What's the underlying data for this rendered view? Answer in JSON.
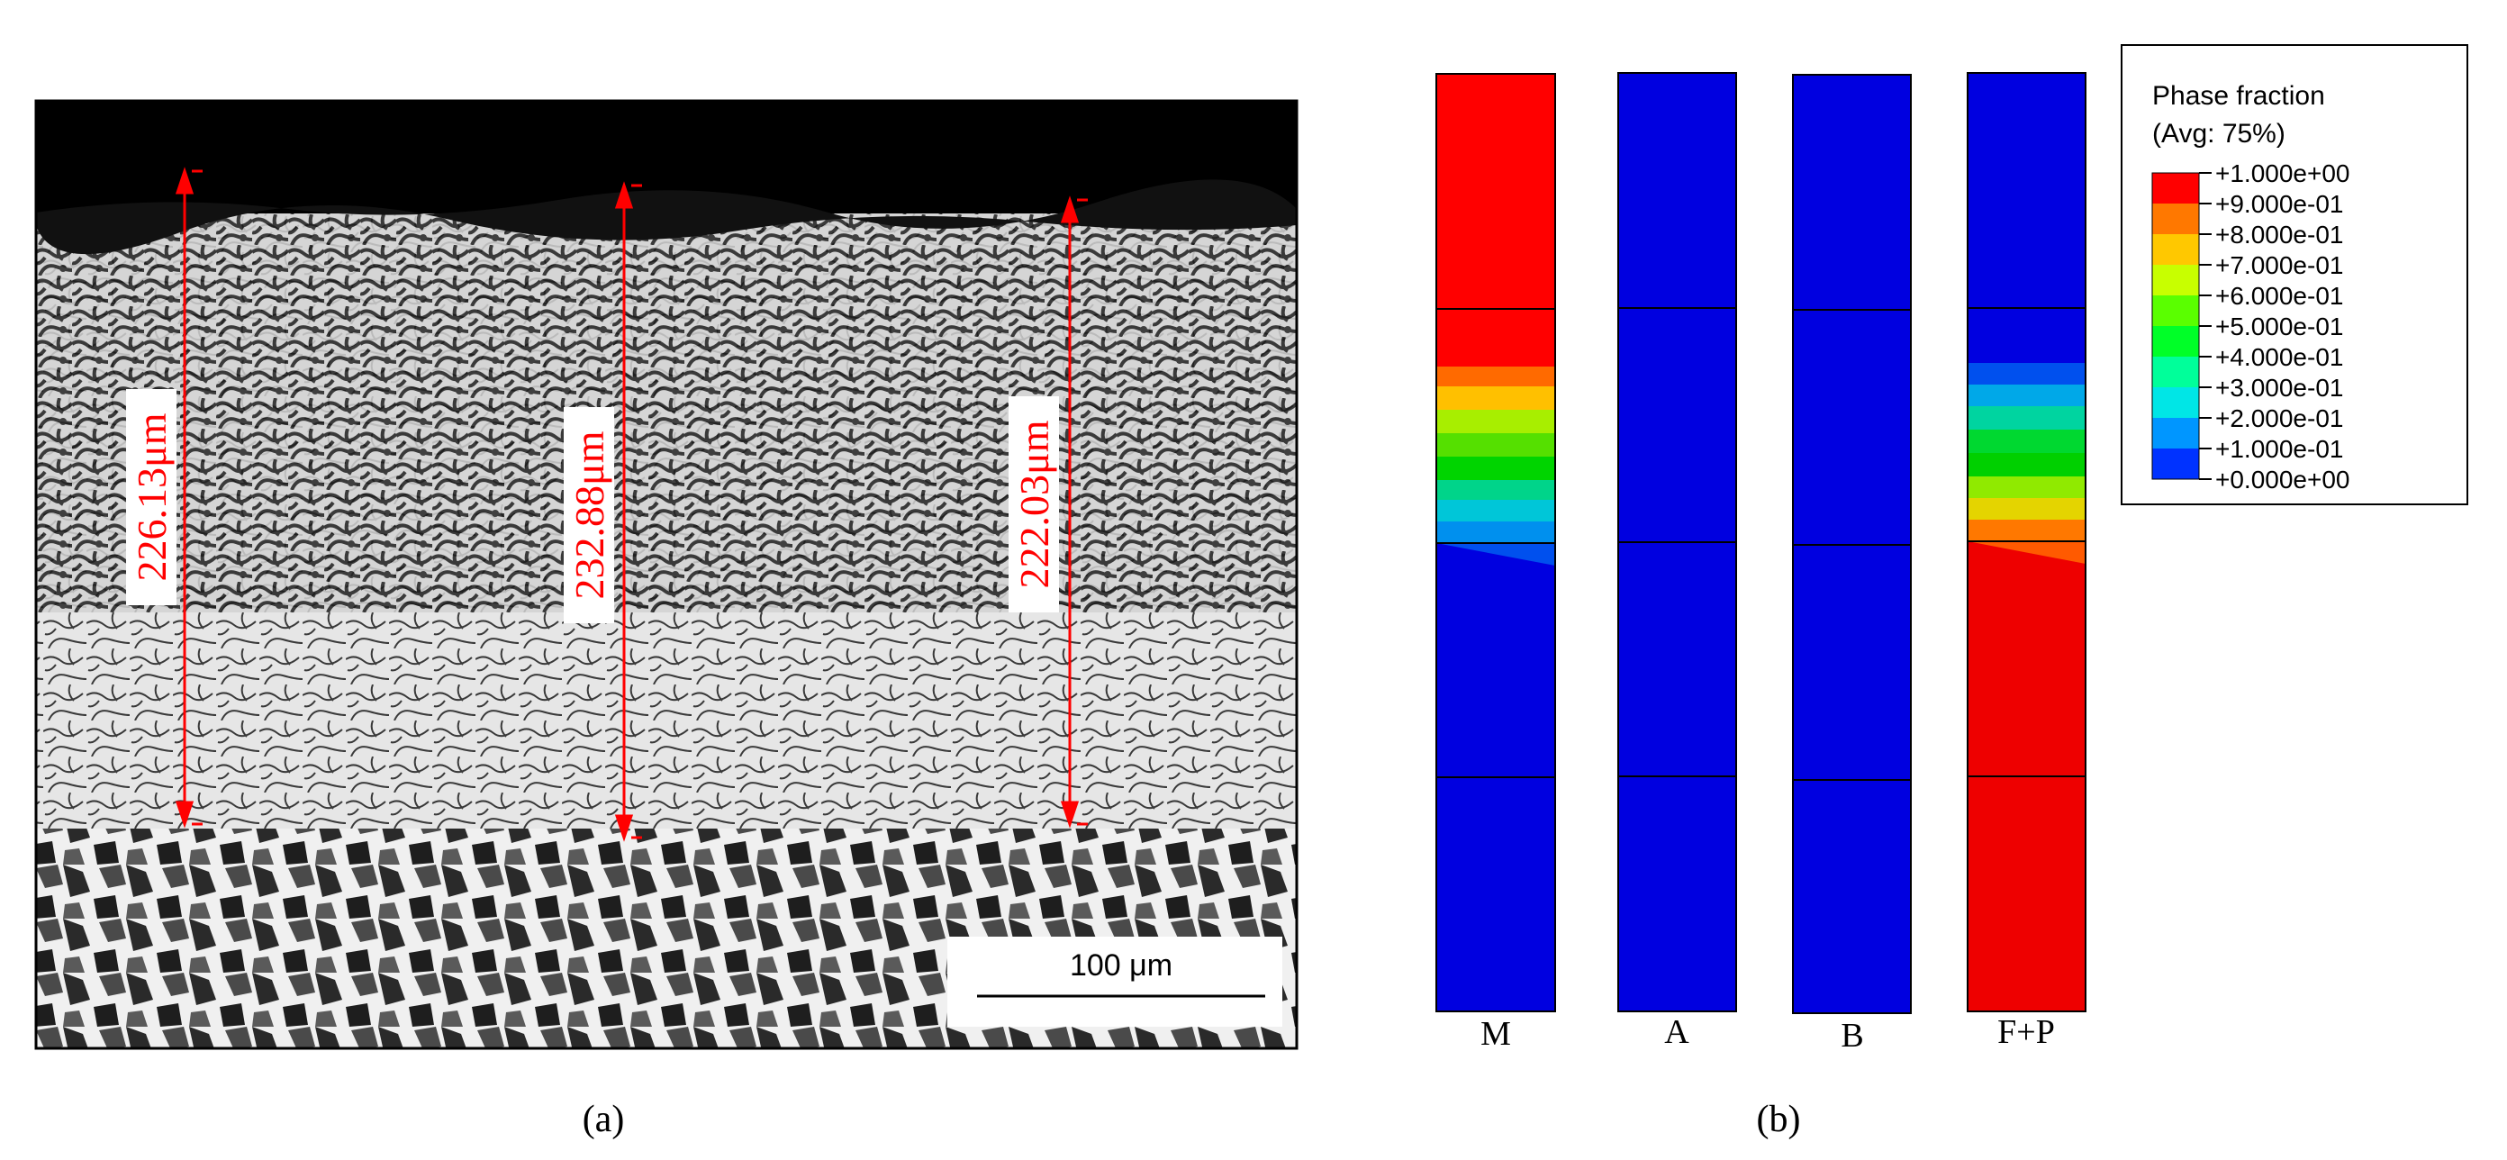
{
  "panel_a": {
    "caption": "(a)",
    "measurements": [
      "226.13μm",
      "232.88μm",
      "222.03μm"
    ],
    "scale_bar": "100 μm"
  },
  "panel_b": {
    "caption": "(b)",
    "legend": {
      "title": "Phase fraction",
      "subtitle": "(Avg: 75%)",
      "levels": [
        "+1.000e+00",
        "+9.000e-01",
        "+8.000e-01",
        "+7.000e-01",
        "+6.000e-01",
        "+5.000e-01",
        "+4.000e-01",
        "+3.000e-01",
        "+2.000e-01",
        "+1.000e-01",
        "+0.000e+00"
      ],
      "colors": [
        "#ff0000",
        "#ff7800",
        "#ffc800",
        "#c8ff00",
        "#5aff00",
        "#00ff28",
        "#00ff9a",
        "#00e6e6",
        "#0096ff",
        "#0032ff",
        "#0000ff"
      ]
    },
    "columns": [
      "M",
      "A",
      "B",
      "F+P"
    ]
  }
}
